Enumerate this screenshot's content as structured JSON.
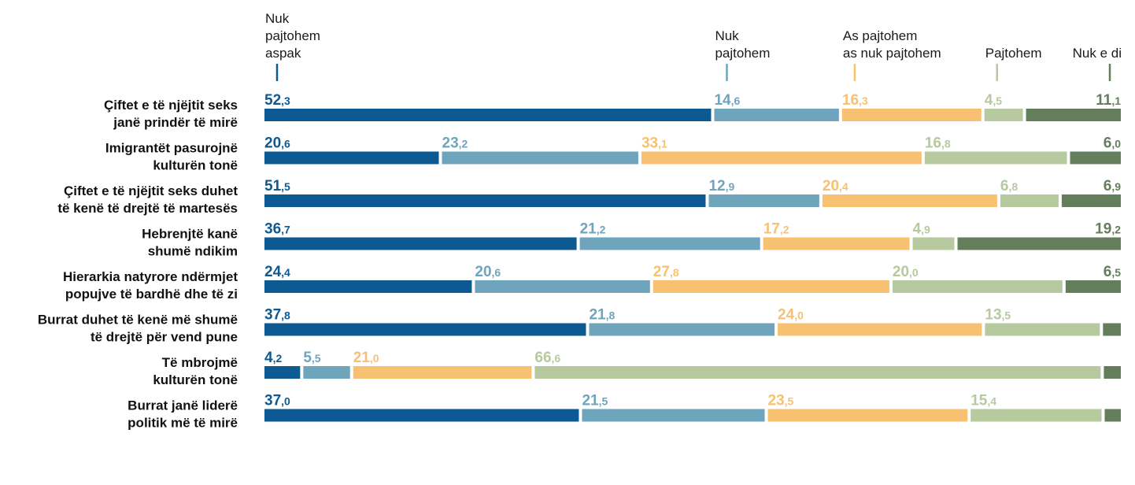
{
  "chart_data": {
    "type": "bar",
    "stacked": true,
    "horizontal": true,
    "series": [
      {
        "name": "Nuk pajtohem aspak",
        "color": "#0d5a92",
        "values": [
          52.3,
          20.6,
          51.5,
          36.7,
          24.4,
          37.8,
          4.2,
          37.0
        ],
        "labels": [
          [
            "52",
            ",3"
          ],
          [
            "20",
            ",6"
          ],
          [
            "51",
            ",5"
          ],
          [
            "36",
            ",7"
          ],
          [
            "24",
            ",4"
          ],
          [
            "37",
            ",8"
          ],
          [
            "4",
            ",2"
          ],
          [
            "37",
            ",0"
          ]
        ]
      },
      {
        "name": "Nuk pajtohem",
        "color": "#6ea5bc",
        "values": [
          14.6,
          23.2,
          12.9,
          21.2,
          20.6,
          21.8,
          5.5,
          21.5
        ],
        "labels": [
          [
            "14",
            ",6"
          ],
          [
            "23",
            ",2"
          ],
          [
            "12",
            ",9"
          ],
          [
            "21",
            ",2"
          ],
          [
            "20",
            ",6"
          ],
          [
            "21",
            ",8"
          ],
          [
            "5",
            ",5"
          ],
          [
            "21",
            ",5"
          ]
        ]
      },
      {
        "name": "As pajtohem as nuk pajtohem",
        "color": "#f8c172",
        "values": [
          16.3,
          33.1,
          20.4,
          17.2,
          27.8,
          24.0,
          21.0,
          23.5
        ],
        "labels": [
          [
            "16",
            ",3"
          ],
          [
            "33",
            ",1"
          ],
          [
            "20",
            ",4"
          ],
          [
            "17",
            ",2"
          ],
          [
            "27",
            ",8"
          ],
          [
            "24",
            ",0"
          ],
          [
            "21",
            ",0"
          ],
          [
            "23",
            ",5"
          ]
        ]
      },
      {
        "name": "Pajtohem",
        "color": "#b7c99e",
        "values": [
          4.5,
          16.8,
          6.8,
          4.9,
          20.0,
          13.5,
          66.6,
          15.4
        ],
        "labels": [
          [
            "4",
            ",5"
          ],
          [
            "16",
            ",8"
          ],
          [
            "6",
            ",8"
          ],
          [
            "4",
            ",9"
          ],
          [
            "20",
            ",0"
          ],
          [
            "13",
            ",5"
          ],
          [
            "66",
            ",6"
          ],
          [
            "15",
            ",4"
          ]
        ]
      },
      {
        "name": "Nuk e di",
        "color": "#647e5c",
        "values": [
          11.1,
          6.0,
          6.9,
          19.2,
          6.5,
          2.1,
          2.0,
          1.9
        ],
        "labels": [
          [
            "11",
            ",1"
          ],
          [
            "6",
            ",0"
          ],
          [
            "6",
            ",9"
          ],
          [
            "19",
            ",2"
          ],
          [
            "6",
            ",5"
          ],
          null,
          null,
          null
        ]
      }
    ],
    "legend": [
      {
        "lines": [
          "Nuk",
          "pajtohem",
          "aspak"
        ],
        "series": 0
      },
      {
        "lines": [
          "Nuk",
          "pajtohem"
        ],
        "series": 1
      },
      {
        "lines": [
          "As pajtohem",
          "as nuk pajtohem"
        ],
        "series": 2
      },
      {
        "lines": [
          "Pajtohem"
        ],
        "series": 3
      },
      {
        "lines": [
          "Nuk e di"
        ],
        "series": 4
      }
    ],
    "categories": [
      [
        "Çiftet e të njëjtit seks",
        "janë prindër të mirë"
      ],
      [
        "Imigrantët pasurojnë",
        "kulturën tonë"
      ],
      [
        "Çiftet e të njëjtit seks duhet",
        "të kenë të drejtë të martesës"
      ],
      [
        "Hebrenjtë kanë",
        "shumë ndikim"
      ],
      [
        "Hierarkia natyrore ndërmjet",
        "popujve të bardhë dhe të zi"
      ],
      [
        "Burrat duhet të kenë më shumë",
        "të drejtë për vend pune"
      ],
      [
        "Të mbrojmë",
        "kulturën tonë"
      ],
      [
        "Burrat janë liderë",
        "politik më të mirë"
      ]
    ],
    "xlim": [
      0,
      100
    ]
  }
}
